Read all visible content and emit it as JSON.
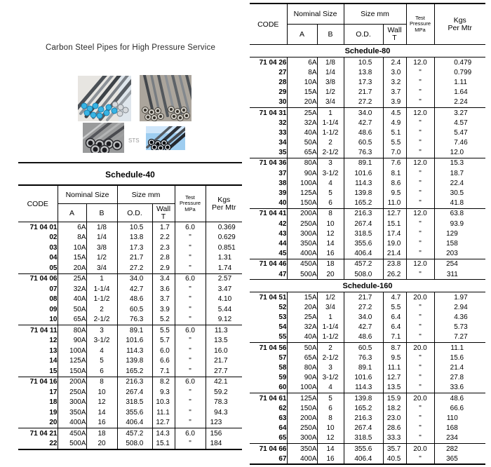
{
  "page": {
    "title": "Carbon Steel Pipes for High Pressure Service",
    "sts_label": "STS",
    "photos": [
      "pipes-blue-tipped-bundle",
      "pipes-stacked-yard",
      "pipes-end-view",
      "pipes-on-blue"
    ]
  },
  "table_header": {
    "code": "CODE",
    "nominal_size": "Nominal Size",
    "size_mm": "Size mm",
    "a": "A",
    "b": "B",
    "od": "O.D.",
    "wall_line1": "Wall",
    "wall_line2": "T",
    "test_line1": "Test",
    "test_line2": "Pressure",
    "test_line3": "MPa",
    "kgs_line1": "Kgs",
    "kgs_line2": "Per Mtr"
  },
  "left_table": {
    "title": "Schedule-40",
    "sections": [
      {
        "title": null,
        "groups": [
          {
            "code_prefix": "71 04",
            "rows": [
              [
                "01",
                "6A",
                "1/8",
                "10.5",
                "1.7",
                "6.0",
                "0.369"
              ],
              [
                "02",
                "8A",
                "1/4",
                "13.8",
                "2.2",
                "\"",
                "0.629"
              ],
              [
                "03",
                "10A",
                "3/8",
                "17.3",
                "2.3",
                "\"",
                "0.851"
              ],
              [
                "04",
                "15A",
                "1/2",
                "21.7",
                "2.8",
                "\"",
                "1.31"
              ],
              [
                "05",
                "20A",
                "3/4",
                "27.2",
                "2.9",
                "\"",
                "1.74"
              ]
            ]
          },
          {
            "code_prefix": "71 04",
            "rows": [
              [
                "06",
                "25A",
                "1",
                "34.0",
                "3.4",
                "6.0",
                "2.57"
              ],
              [
                "07",
                "32A",
                "1-1/4",
                "42.7",
                "3.6",
                "\"",
                "3.47"
              ],
              [
                "08",
                "40A",
                "1-1/2",
                "48.6",
                "3.7",
                "\"",
                "4.10"
              ],
              [
                "09",
                "50A",
                "2",
                "60.5",
                "3.9",
                "\"",
                "5.44"
              ],
              [
                "10",
                "65A",
                "2-1/2",
                "76.3",
                "5.2",
                "\"",
                "9.12"
              ]
            ]
          },
          {
            "code_prefix": "71 04",
            "rows": [
              [
                "11",
                "80A",
                "3",
                "89.1",
                "5.5",
                "6.0",
                "11.3"
              ],
              [
                "12",
                "90A",
                "3-1/2",
                "101.6",
                "5.7",
                "\"",
                "13.5"
              ],
              [
                "13",
                "100A",
                "4",
                "114.3",
                "6.0",
                "\"",
                "16.0"
              ],
              [
                "14",
                "125A",
                "5",
                "139.8",
                "6.6",
                "\"",
                "21.7"
              ],
              [
                "15",
                "150A",
                "6",
                "165.2",
                "7.1",
                "\"",
                "27.7"
              ]
            ]
          },
          {
            "code_prefix": "71 04",
            "rows": [
              [
                "16",
                "200A",
                "8",
                "216.3",
                "8.2",
                "6.0",
                "42.1"
              ],
              [
                "17",
                "250A",
                "10",
                "267.4",
                "9.3",
                "\"",
                "59.2"
              ],
              [
                "18",
                "300A",
                "12",
                "318.5",
                "10.3",
                "\"",
                "78.3"
              ],
              [
                "19",
                "350A",
                "14",
                "355.6",
                "11.1",
                "\"",
                "94.3"
              ],
              [
                "20",
                "400A",
                "16",
                "406.4",
                "12.7",
                "\"",
                "123"
              ]
            ]
          },
          {
            "code_prefix": "71 04",
            "rows": [
              [
                "21",
                "450A",
                "18",
                "457.2",
                "14.3",
                "6.0",
                "156"
              ],
              [
                "22",
                "500A",
                "20",
                "508.0",
                "15.1",
                "\"",
                "184"
              ]
            ]
          }
        ]
      }
    ]
  },
  "right_table": {
    "sections": [
      {
        "title": "Schedule-80",
        "groups": [
          {
            "code_prefix": "71 04",
            "rows": [
              [
                "26",
                "6A",
                "1/8",
                "10.5",
                "2.4",
                "12.0",
                "0.479"
              ],
              [
                "27",
                "8A",
                "1/4",
                "13.8",
                "3.0",
                "\"",
                "0.799"
              ],
              [
                "28",
                "10A",
                "3/8",
                "17.3",
                "3.2",
                "\"",
                "1.11"
              ],
              [
                "29",
                "15A",
                "1/2",
                "21.7",
                "3.7",
                "\"",
                "1.64"
              ],
              [
                "30",
                "20A",
                "3/4",
                "27.2",
                "3.9",
                "\"",
                "2.24"
              ]
            ]
          },
          {
            "code_prefix": "71 04",
            "rows": [
              [
                "31",
                "25A",
                "1",
                "34.0",
                "4.5",
                "12.0",
                "3.27"
              ],
              [
                "32",
                "32A",
                "1-1/4",
                "42.7",
                "4.9",
                "\"",
                "4.57"
              ],
              [
                "33",
                "40A",
                "1-1/2",
                "48.6",
                "5.1",
                "\"",
                "5.47"
              ],
              [
                "34",
                "50A",
                "2",
                "60.5",
                "5.5",
                "\"",
                "7.46"
              ],
              [
                "35",
                "65A",
                "2-1/2",
                "76.3",
                "7.0",
                "\"",
                "12.0"
              ]
            ]
          },
          {
            "code_prefix": "71 04",
            "rows": [
              [
                "36",
                "80A",
                "3",
                "89.1",
                "7.6",
                "12.0",
                "15.3"
              ],
              [
                "37",
                "90A",
                "3-1/2",
                "101.6",
                "8.1",
                "\"",
                "18.7"
              ],
              [
                "38",
                "100A",
                "4",
                "114.3",
                "8.6",
                "\"",
                "22.4"
              ],
              [
                "39",
                "125A",
                "5",
                "139.8",
                "9.5",
                "\"",
                "30.5"
              ],
              [
                "40",
                "150A",
                "6",
                "165.2",
                "11.0",
                "\"",
                "41.8"
              ]
            ]
          },
          {
            "code_prefix": "71 04",
            "rows": [
              [
                "41",
                "200A",
                "8",
                "216.3",
                "12.7",
                "12.0",
                "63.8"
              ],
              [
                "42",
                "250A",
                "10",
                "267.4",
                "15.1",
                "\"",
                "93.9"
              ],
              [
                "43",
                "300A",
                "12",
                "318.5",
                "17.4",
                "\"",
                "129"
              ],
              [
                "44",
                "350A",
                "14",
                "355.6",
                "19.0",
                "\"",
                "158"
              ],
              [
                "45",
                "400A",
                "16",
                "406.4",
                "21.4",
                "\"",
                "203"
              ]
            ]
          },
          {
            "code_prefix": "71 04",
            "rows": [
              [
                "46",
                "450A",
                "18",
                "457.2",
                "23.8",
                "12.0",
                "254"
              ],
              [
                "47",
                "500A",
                "20",
                "508.0",
                "26.2",
                "\"",
                "311"
              ]
            ]
          }
        ]
      },
      {
        "title": "Schedule-160",
        "groups": [
          {
            "code_prefix": "71 04",
            "rows": [
              [
                "51",
                "15A",
                "1/2",
                "21.7",
                "4.7",
                "20.0",
                "1.97"
              ],
              [
                "52",
                "20A",
                "3/4",
                "27.2",
                "5.5",
                "\"",
                "2.94"
              ],
              [
                "53",
                "25A",
                "1",
                "34.0",
                "6.4",
                "\"",
                "4.36"
              ],
              [
                "54",
                "32A",
                "1-1/4",
                "42.7",
                "6.4",
                "\"",
                "5.73"
              ],
              [
                "55",
                "40A",
                "1-1/2",
                "48.6",
                "7.1",
                "\"",
                "7.27"
              ]
            ]
          },
          {
            "code_prefix": "71 04",
            "rows": [
              [
                "56",
                "50A",
                "2",
                "60.5",
                "8.7",
                "20.0",
                "11.1"
              ],
              [
                "57",
                "65A",
                "2-1/2",
                "76.3",
                "9.5",
                "\"",
                "15.6"
              ],
              [
                "58",
                "80A",
                "3",
                "89.1",
                "11.1",
                "\"",
                "21.4"
              ],
              [
                "59",
                "90A",
                "3-1/2",
                "101.6",
                "12.7",
                "\"",
                "27.8"
              ],
              [
                "60",
                "100A",
                "4",
                "114.3",
                "13.5",
                "\"",
                "33.6"
              ]
            ]
          },
          {
            "code_prefix": "71 04",
            "rows": [
              [
                "61",
                "125A",
                "5",
                "139.8",
                "15.9",
                "20.0",
                "48.6"
              ],
              [
                "62",
                "150A",
                "6",
                "165.2",
                "18.2",
                "\"",
                "66.6"
              ],
              [
                "63",
                "200A",
                "8",
                "216.3",
                "23.0",
                "\"",
                "110"
              ],
              [
                "64",
                "250A",
                "10",
                "267.4",
                "28.6",
                "\"",
                "168"
              ],
              [
                "65",
                "300A",
                "12",
                "318.5",
                "33.3",
                "\"",
                "234"
              ]
            ]
          },
          {
            "code_prefix": "71 04",
            "rows": [
              [
                "66",
                "350A",
                "14",
                "355.6",
                "35.7",
                "20.0",
                "282"
              ],
              [
                "67",
                "400A",
                "16",
                "406.4",
                "40.5",
                "\"",
                "365"
              ]
            ]
          }
        ]
      }
    ]
  }
}
